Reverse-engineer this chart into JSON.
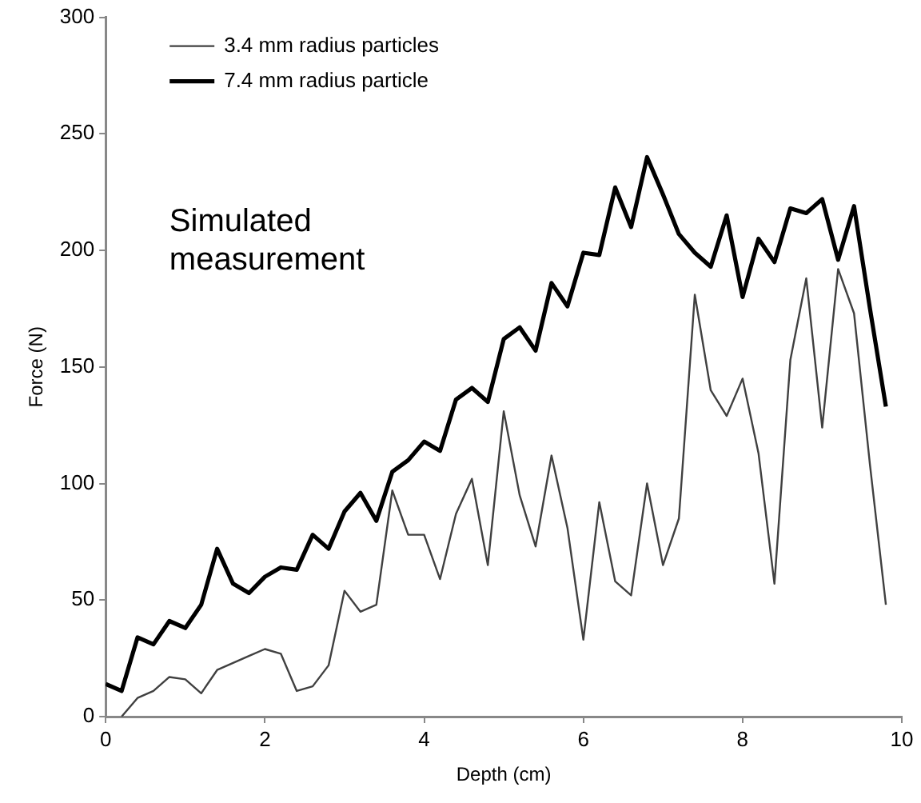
{
  "chart_data": {
    "type": "line",
    "xlabel": "Depth (cm)",
    "ylabel": "Force (N)",
    "x": [
      0,
      0.2,
      0.4,
      0.6,
      0.8,
      1.0,
      1.2,
      1.4,
      1.6,
      1.8,
      2.0,
      2.2,
      2.4,
      2.6,
      2.8,
      3.0,
      3.2,
      3.4,
      3.6,
      3.8,
      4.0,
      4.2,
      4.4,
      4.6,
      4.8,
      5.0,
      5.2,
      5.4,
      5.6,
      5.8,
      6.0,
      6.2,
      6.4,
      6.6,
      6.8,
      7.0,
      7.2,
      7.4,
      7.6,
      7.8,
      8.0,
      8.2,
      8.4,
      8.6,
      8.8,
      9.0,
      9.2,
      9.4,
      9.6,
      9.8
    ],
    "series": [
      {
        "name": "3.4 mm radius particles",
        "color": "#404040",
        "values": [
          null,
          0,
          8,
          11,
          17,
          16,
          10,
          20,
          23,
          26,
          29,
          27,
          11,
          13,
          22,
          54,
          45,
          48,
          97,
          78,
          78,
          59,
          87,
          102,
          65,
          131,
          95,
          73,
          112,
          81,
          33,
          92,
          58,
          52,
          100,
          65,
          85,
          181,
          140,
          129,
          145,
          113,
          57,
          153,
          188,
          124,
          192,
          173,
          108,
          48
        ]
      },
      {
        "name": "7.4 mm radius particle",
        "color": "#000000",
        "values": [
          14,
          11,
          34,
          31,
          41,
          38,
          48,
          72,
          57,
          53,
          60,
          64,
          63,
          78,
          72,
          88,
          96,
          84,
          105,
          110,
          118,
          114,
          136,
          141,
          135,
          162,
          167,
          157,
          186,
          176,
          199,
          198,
          227,
          210,
          240,
          224,
          207,
          199,
          193,
          215,
          180,
          205,
          195,
          218,
          216,
          222,
          196,
          219,
          175,
          133
        ]
      }
    ],
    "xlim": [
      0,
      10
    ],
    "xticks": [
      0,
      2,
      4,
      6,
      8,
      10
    ],
    "ylim": [
      0,
      300
    ],
    "yticks": [
      0,
      50,
      100,
      150,
      200,
      250,
      300
    ],
    "grid": false,
    "legend": "top left",
    "marker": "none",
    "line_style": "solid",
    "annotations": [
      "Simulated\nmeasurement"
    ]
  }
}
